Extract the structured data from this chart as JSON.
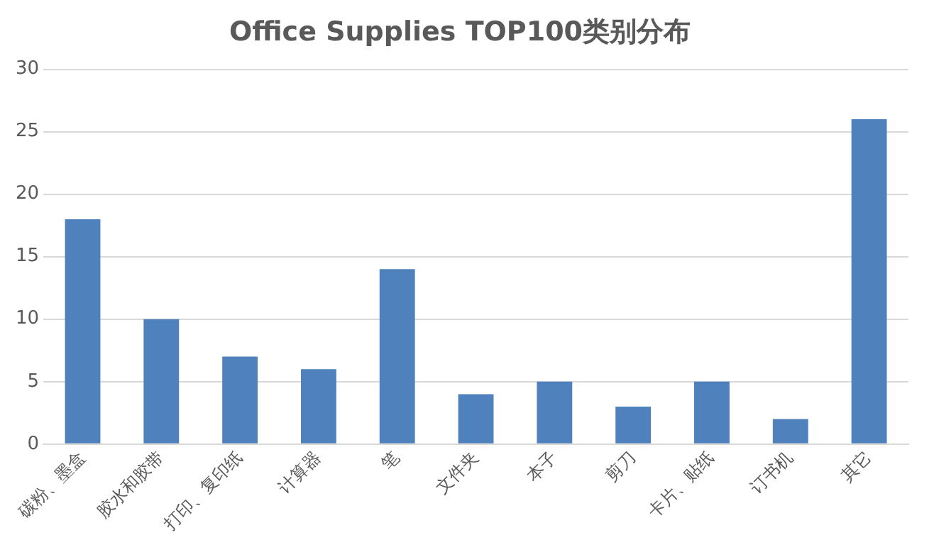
{
  "chart_data": {
    "type": "bar",
    "title": "Office Supplies TOP100类别分布",
    "categories": [
      "碳粉、墨盒",
      "胶水和胶带",
      "打印、复印纸",
      "计算器",
      "笔",
      "文件夹",
      "本子",
      "剪刀",
      "卡片、贴纸",
      "订书机",
      "其它"
    ],
    "values": [
      18,
      10,
      7,
      6,
      14,
      4,
      5,
      3,
      5,
      2,
      26
    ],
    "color": "#4f81bd",
    "ylim": [
      0,
      30
    ],
    "yticks": [
      0,
      5,
      10,
      15,
      20,
      25,
      30
    ],
    "grid": "y",
    "legend": false
  }
}
